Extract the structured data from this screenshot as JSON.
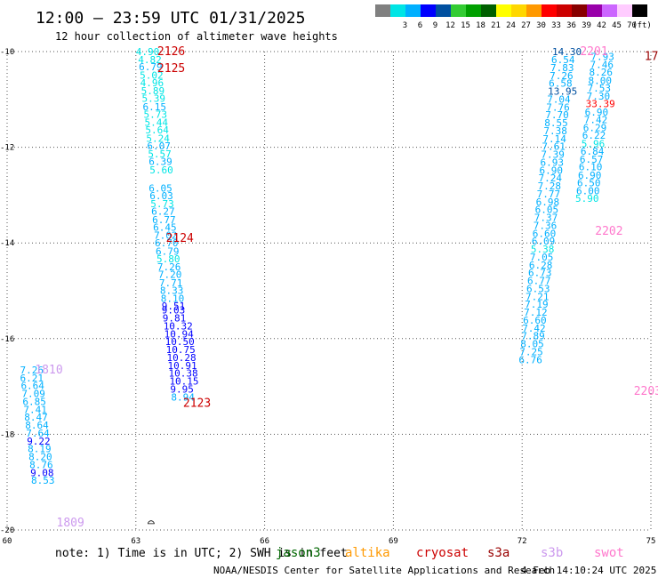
{
  "header": {
    "title": "12:00 — 23:59 UTC 01/31/2025",
    "subtitle": "12 hour collection of altimeter wave heights"
  },
  "legend": {
    "unit": "(ft)",
    "bins": [
      {
        "label": "",
        "color": "#808080"
      },
      {
        "label": "3",
        "color": "#00e5e5"
      },
      {
        "label": "6",
        "color": "#00b0ff"
      },
      {
        "label": "9",
        "color": "#0000ff"
      },
      {
        "label": "12",
        "color": "#0050a0"
      },
      {
        "label": "15",
        "color": "#33cc33"
      },
      {
        "label": "18",
        "color": "#00a000"
      },
      {
        "label": "21",
        "color": "#006000"
      },
      {
        "label": "24",
        "color": "#ffff00"
      },
      {
        "label": "27",
        "color": "#ffd700"
      },
      {
        "label": "30",
        "color": "#ff9900"
      },
      {
        "label": "33",
        "color": "#ff0000"
      },
      {
        "label": "36",
        "color": "#cc0000"
      },
      {
        "label": "39",
        "color": "#880000"
      },
      {
        "label": "42",
        "color": "#9900aa"
      },
      {
        "label": "45",
        "color": "#cc66ff"
      },
      {
        "label": "70",
        "color": "#ffccff"
      },
      {
        "label": "",
        "color": "#000000"
      }
    ]
  },
  "footer": {
    "note": "note:  1) Time is in UTC; 2) SWH is in feet",
    "credit": "NOAA/NESDIS Center for Satellite Applications and Research",
    "timestamp": "4 Feb 14:10:24 UTC 2025",
    "satellites": [
      {
        "name": "jason3",
        "color": "#006600"
      },
      {
        "name": "altika",
        "color": "#ff9900"
      },
      {
        "name": "cryosat",
        "color": "#cc0000"
      },
      {
        "name": "s3a",
        "color": "#990000"
      },
      {
        "name": "s3b",
        "color": "#cc99ee"
      },
      {
        "name": "swot",
        "color": "#ff77cc"
      }
    ]
  },
  "chart_data": {
    "type": "scatter",
    "xlim": [
      60,
      75
    ],
    "ylim": [
      -20,
      -10
    ],
    "x_ticks": [
      60,
      63,
      66,
      69,
      72,
      75
    ],
    "y_ticks": [
      -10,
      -12,
      -14,
      -16,
      -18,
      -20
    ],
    "grid": true,
    "tracks": [
      {
        "label": "2126",
        "label_color": "#cc0000",
        "label_at": [
          63.5,
          -10
        ]
      },
      {
        "label": "2125",
        "label_color": "#cc0000",
        "label_at": [
          63.5,
          -10.35
        ]
      },
      {
        "label": "2124",
        "label_color": "#cc0000",
        "label_at": [
          63.7,
          -13.9
        ]
      },
      {
        "label": "2123",
        "label_color": "#cc0000",
        "label_at": [
          64.1,
          -17.35
        ]
      },
      {
        "label": "1810",
        "label_color": "#cc99ee",
        "label_at": [
          60.65,
          -16.65
        ]
      },
      {
        "label": "1809",
        "label_color": "#cc99ee",
        "label_at": [
          61.15,
          -19.85
        ]
      },
      {
        "label": "2201",
        "label_color": "#ff77cc",
        "label_at": [
          73.35,
          -10
        ]
      },
      {
        "label": "2202",
        "label_color": "#ff77cc",
        "label_at": [
          73.7,
          -13.75
        ]
      },
      {
        "label": "2203",
        "label_color": "#ff77cc",
        "label_at": [
          74.6,
          -17.1
        ]
      },
      {
        "label": "17",
        "label_color": "#990000",
        "label_at": [
          74.85,
          -10.1
        ]
      }
    ],
    "points": [
      {
        "x": 63.0,
        "y": -10.0,
        "swh": 4.9
      },
      {
        "x": 63.05,
        "y": -10.17,
        "swh": 4.82
      },
      {
        "x": 63.07,
        "y": -10.32,
        "swh": 6.79
      },
      {
        "x": 63.09,
        "y": -10.49,
        "swh": 5.02
      },
      {
        "x": 63.1,
        "y": -10.65,
        "swh": 4.96
      },
      {
        "x": 63.12,
        "y": -10.82,
        "swh": 5.89
      },
      {
        "x": 63.14,
        "y": -10.98,
        "swh": 5.39
      },
      {
        "x": 63.16,
        "y": -11.15,
        "swh": 6.15
      },
      {
        "x": 63.18,
        "y": -11.31,
        "swh": 5.73
      },
      {
        "x": 63.2,
        "y": -11.48,
        "swh": 5.44
      },
      {
        "x": 63.22,
        "y": -11.64,
        "swh": 5.64
      },
      {
        "x": 63.24,
        "y": -11.81,
        "swh": 5.24
      },
      {
        "x": 63.26,
        "y": -11.97,
        "swh": 6.07
      },
      {
        "x": 63.28,
        "y": -12.14,
        "swh": 5.57
      },
      {
        "x": 63.3,
        "y": -12.3,
        "swh": 6.39
      },
      {
        "x": 63.32,
        "y": -12.47,
        "swh": 5.6
      },
      {
        "x": 63.3,
        "y": -12.85,
        "swh": 6.05
      },
      {
        "x": 63.32,
        "y": -13.01,
        "swh": 6.03
      },
      {
        "x": 63.34,
        "y": -13.18,
        "swh": 5.73
      },
      {
        "x": 63.36,
        "y": -13.34,
        "swh": 6.27
      },
      {
        "x": 63.38,
        "y": -13.51,
        "swh": 6.77
      },
      {
        "x": 63.4,
        "y": -13.67,
        "swh": 6.45
      },
      {
        "x": 63.42,
        "y": -13.84,
        "swh": 7.02
      },
      {
        "x": 63.44,
        "y": -14.0,
        "swh": 6.7
      },
      {
        "x": 63.46,
        "y": -14.17,
        "swh": 6.79
      },
      {
        "x": 63.48,
        "y": -14.33,
        "swh": 5.8
      },
      {
        "x": 63.5,
        "y": -14.5,
        "swh": 7.26
      },
      {
        "x": 63.52,
        "y": -14.66,
        "swh": 7.2
      },
      {
        "x": 63.54,
        "y": -14.83,
        "swh": 7.71
      },
      {
        "x": 63.56,
        "y": -14.99,
        "swh": 8.33
      },
      {
        "x": 63.58,
        "y": -15.16,
        "swh": 8.1
      },
      {
        "x": 63.6,
        "y": -15.32,
        "swh": 9.51
      },
      {
        "x": 63.6,
        "y": -15.4,
        "swh": 9.03
      },
      {
        "x": 63.62,
        "y": -15.57,
        "swh": 9.81
      },
      {
        "x": 63.64,
        "y": -15.73,
        "swh": 10.32
      },
      {
        "x": 63.66,
        "y": -15.9,
        "swh": 10.94
      },
      {
        "x": 63.68,
        "y": -16.06,
        "swh": 10.5
      },
      {
        "x": 63.7,
        "y": -16.23,
        "swh": 10.75
      },
      {
        "x": 63.72,
        "y": -16.39,
        "swh": 10.28
      },
      {
        "x": 63.74,
        "y": -16.56,
        "swh": 10.91
      },
      {
        "x": 63.76,
        "y": -16.72,
        "swh": 10.38
      },
      {
        "x": 63.78,
        "y": -16.89,
        "swh": 10.15
      },
      {
        "x": 63.8,
        "y": -17.05,
        "swh": 9.95
      },
      {
        "x": 63.82,
        "y": -17.22,
        "swh": 8.94
      },
      {
        "x": 60.3,
        "y": -16.65,
        "swh": 7.26
      },
      {
        "x": 60.3,
        "y": -16.82,
        "swh": 6.21
      },
      {
        "x": 60.32,
        "y": -16.98,
        "swh": 6.64
      },
      {
        "x": 60.34,
        "y": -17.15,
        "swh": 7.09
      },
      {
        "x": 60.36,
        "y": -17.31,
        "swh": 6.85
      },
      {
        "x": 60.38,
        "y": -17.48,
        "swh": 7.41
      },
      {
        "x": 60.4,
        "y": -17.64,
        "swh": 8.47
      },
      {
        "x": 60.42,
        "y": -17.81,
        "swh": 8.64
      },
      {
        "x": 60.44,
        "y": -17.97,
        "swh": 7.64
      },
      {
        "x": 60.46,
        "y": -18.14,
        "swh": 9.22
      },
      {
        "x": 60.48,
        "y": -18.3,
        "swh": 8.19
      },
      {
        "x": 60.5,
        "y": -18.47,
        "swh": 8.2
      },
      {
        "x": 60.52,
        "y": -18.63,
        "swh": 8.76
      },
      {
        "x": 60.54,
        "y": -18.8,
        "swh": 9.08
      },
      {
        "x": 60.56,
        "y": -18.96,
        "swh": 8.53
      },
      {
        "x": 72.7,
        "y": -10.0,
        "swh": 14.3
      },
      {
        "x": 72.68,
        "y": -10.17,
        "swh": 6.54
      },
      {
        "x": 72.66,
        "y": -10.33,
        "swh": 7.83
      },
      {
        "x": 72.64,
        "y": -10.5,
        "swh": 7.26
      },
      {
        "x": 72.62,
        "y": -10.66,
        "swh": 6.58
      },
      {
        "x": 72.6,
        "y": -10.83,
        "swh": 13.95
      },
      {
        "x": 72.58,
        "y": -10.99,
        "swh": 7.04
      },
      {
        "x": 72.56,
        "y": -11.16,
        "swh": 7.76
      },
      {
        "x": 72.54,
        "y": -11.32,
        "swh": 7.7
      },
      {
        "x": 72.52,
        "y": -11.49,
        "swh": 8.55
      },
      {
        "x": 72.5,
        "y": -11.65,
        "swh": 7.38
      },
      {
        "x": 72.48,
        "y": -11.82,
        "swh": 7.14
      },
      {
        "x": 72.46,
        "y": -11.98,
        "swh": 7.61
      },
      {
        "x": 72.44,
        "y": -12.15,
        "swh": 7.39
      },
      {
        "x": 72.42,
        "y": -12.31,
        "swh": 6.93
      },
      {
        "x": 72.4,
        "y": -12.48,
        "swh": 6.9
      },
      {
        "x": 72.38,
        "y": -12.64,
        "swh": 7.24
      },
      {
        "x": 72.36,
        "y": -12.81,
        "swh": 7.28
      },
      {
        "x": 72.34,
        "y": -12.97,
        "swh": 7.77
      },
      {
        "x": 72.32,
        "y": -13.14,
        "swh": 6.98
      },
      {
        "x": 72.3,
        "y": -13.3,
        "swh": 6.05
      },
      {
        "x": 72.28,
        "y": -13.47,
        "swh": 7.37
      },
      {
        "x": 72.26,
        "y": -13.63,
        "swh": 7.36
      },
      {
        "x": 72.24,
        "y": -13.8,
        "swh": 6.6
      },
      {
        "x": 72.22,
        "y": -13.96,
        "swh": 6.09
      },
      {
        "x": 72.2,
        "y": -14.13,
        "swh": 5.38
      },
      {
        "x": 72.18,
        "y": -14.29,
        "swh": 7.05
      },
      {
        "x": 72.16,
        "y": -14.46,
        "swh": 6.28
      },
      {
        "x": 72.14,
        "y": -14.62,
        "swh": 6.73
      },
      {
        "x": 72.12,
        "y": -14.79,
        "swh": 6.77
      },
      {
        "x": 72.1,
        "y": -14.95,
        "swh": 6.53
      },
      {
        "x": 72.08,
        "y": -15.12,
        "swh": 7.21
      },
      {
        "x": 72.06,
        "y": -15.28,
        "swh": 7.19
      },
      {
        "x": 72.04,
        "y": -15.45,
        "swh": 7.12
      },
      {
        "x": 72.02,
        "y": -15.61,
        "swh": 6.6
      },
      {
        "x": 72.0,
        "y": -15.78,
        "swh": 7.42
      },
      {
        "x": 71.98,
        "y": -15.94,
        "swh": 7.89
      },
      {
        "x": 71.96,
        "y": -16.11,
        "swh": 8.05
      },
      {
        "x": 71.94,
        "y": -16.27,
        "swh": 7.25
      },
      {
        "x": 71.92,
        "y": -16.44,
        "swh": 6.76
      },
      {
        "x": 73.6,
        "y": -10.1,
        "swh": 7.93
      },
      {
        "x": 73.58,
        "y": -10.27,
        "swh": 7.46
      },
      {
        "x": 73.56,
        "y": -10.43,
        "swh": 8.26
      },
      {
        "x": 73.54,
        "y": -10.6,
        "swh": 8.0
      },
      {
        "x": 73.52,
        "y": -10.76,
        "swh": 7.53
      },
      {
        "x": 73.5,
        "y": -10.93,
        "swh": 7.3
      },
      {
        "x": 73.48,
        "y": -11.09,
        "swh": 33.39
      },
      {
        "x": 73.46,
        "y": -11.26,
        "swh": 6.9
      },
      {
        "x": 73.44,
        "y": -11.42,
        "swh": 7.42
      },
      {
        "x": 73.42,
        "y": -11.59,
        "swh": 6.29
      },
      {
        "x": 73.4,
        "y": -11.75,
        "swh": 6.22
      },
      {
        "x": 73.38,
        "y": -11.92,
        "swh": 5.96
      },
      {
        "x": 73.36,
        "y": -12.08,
        "swh": 6.84
      },
      {
        "x": 73.34,
        "y": -12.25,
        "swh": 6.57
      },
      {
        "x": 73.32,
        "y": -12.41,
        "swh": 6.1
      },
      {
        "x": 73.3,
        "y": -12.58,
        "swh": 6.9
      },
      {
        "x": 73.28,
        "y": -12.74,
        "swh": 6.5
      },
      {
        "x": 73.26,
        "y": -12.91,
        "swh": 6.0
      },
      {
        "x": 73.24,
        "y": -13.07,
        "swh": 5.9
      }
    ]
  }
}
